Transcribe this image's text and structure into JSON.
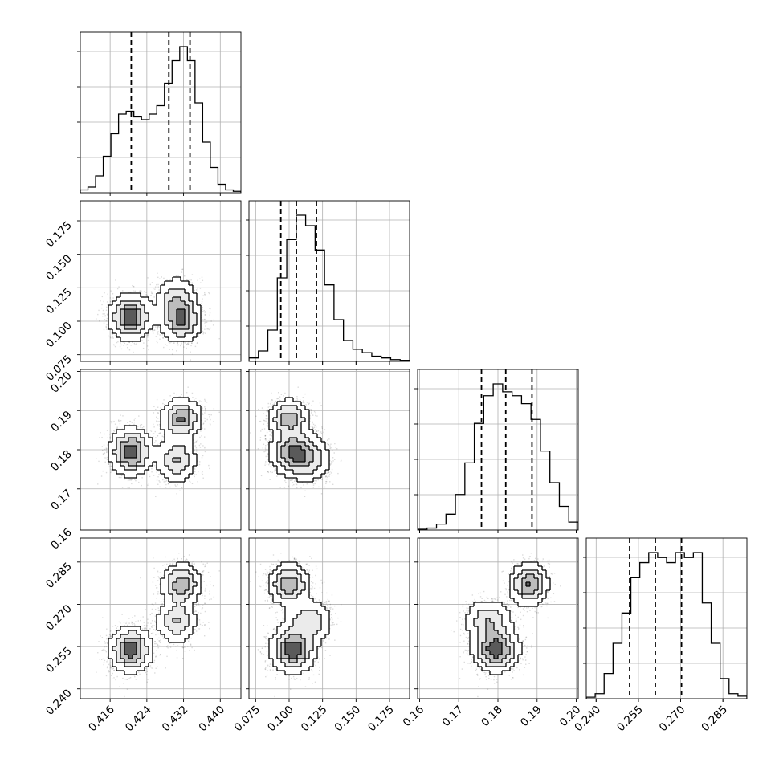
{
  "chart_data": {
    "type": "corner",
    "n_params": 4,
    "params": [
      {
        "ticks": [
          0.416,
          0.424,
          0.432,
          0.44
        ],
        "tick_labels": [
          "0.416",
          "0.424",
          "0.432",
          "0.440"
        ],
        "range": [
          0.4095,
          0.4445
        ],
        "quantiles": [
          0.4206,
          0.4288,
          0.4334
        ],
        "hist": [
          1,
          2,
          6,
          13,
          21,
          28,
          29,
          27,
          26,
          28,
          31,
          39,
          47,
          52,
          47,
          32,
          18,
          9,
          3,
          1,
          0.5
        ]
      },
      {
        "ticks": [
          0.075,
          0.1,
          0.125,
          0.15,
          0.175
        ],
        "tick_labels": [
          "0.075",
          "0.100",
          "0.125",
          "0.150",
          "0.175"
        ],
        "range": [
          0.07,
          0.19
        ],
        "quantiles": [
          0.0938,
          0.1054,
          0.1204
        ],
        "hist": [
          1,
          3,
          9,
          24,
          35,
          42,
          39,
          32,
          22,
          12,
          6,
          3.5,
          2.5,
          1.5,
          1,
          0.5,
          0.3
        ]
      },
      {
        "ticks": [
          0.16,
          0.17,
          0.18,
          0.19,
          0.2
        ],
        "tick_labels": [
          "0.16",
          "0.17",
          "0.18",
          "0.19",
          "0.20"
        ],
        "range": [
          0.1595,
          0.2005
        ],
        "quantiles": [
          0.1758,
          0.182,
          0.1887
        ],
        "hist": [
          0.2,
          0.5,
          1.5,
          4,
          9,
          17,
          27,
          34,
          37,
          35,
          34,
          32,
          28,
          20,
          12,
          6,
          2
        ]
      },
      {
        "ticks": [
          0.24,
          0.255,
          0.27,
          0.285
        ],
        "tick_labels": [
          "0.240",
          "0.255",
          "0.270",
          "0.285"
        ],
        "range": [
          0.2365,
          0.2935
        ],
        "quantiles": [
          0.2519,
          0.261,
          0.2703
        ],
        "hist": [
          0.3,
          1,
          5,
          11,
          17,
          24,
          27,
          29,
          28,
          27,
          29,
          28,
          29,
          19,
          11,
          4,
          1,
          0.5
        ]
      }
    ],
    "modes": [
      {
        "w": 0.45,
        "mean": [
          0.4205,
          0.103,
          0.1795,
          0.254
        ],
        "sd": [
          0.0023,
          0.0085,
          0.003,
          0.004
        ]
      },
      {
        "w": 0.3,
        "mean": [
          0.4315,
          0.1,
          0.188,
          0.277
        ],
        "sd": [
          0.0022,
          0.008,
          0.0025,
          0.0038
        ]
      },
      {
        "w": 0.25,
        "mean": [
          0.4305,
          0.115,
          0.1775,
          0.264
        ],
        "sd": [
          0.0022,
          0.009,
          0.003,
          0.004
        ]
      }
    ],
    "grid": true,
    "quantile_lines": "dashed"
  }
}
